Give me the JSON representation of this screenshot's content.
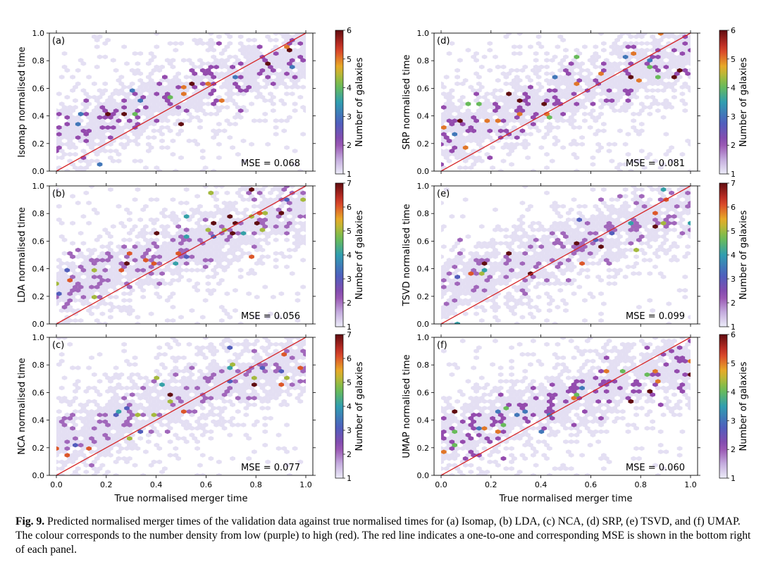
{
  "chart_data": [
    {
      "type": "heatmap",
      "subtype": "hexbin",
      "panel_label": "(a)",
      "ylabel": "Isomap normalised time",
      "xlabel": "",
      "mse": "MSE = 0.068",
      "xlim": [
        0,
        1
      ],
      "ylim": [
        0,
        1
      ],
      "x_ticks": [
        "0.0",
        "0.2",
        "0.4",
        "0.6",
        "0.8",
        "1.0"
      ],
      "y_ticks": [
        "0.0",
        "0.2",
        "0.4",
        "0.6",
        "0.8",
        "1.0"
      ],
      "show_x_ticklabels": false,
      "colorbar": {
        "label": "Number of galaxies",
        "ticks": [
          "1",
          "2",
          "3",
          "4",
          "5",
          "6"
        ],
        "min": 1,
        "max": 6
      },
      "reference_line": "one-to-one",
      "reference_color": "#d62728",
      "seed": 11
    },
    {
      "type": "heatmap",
      "subtype": "hexbin",
      "panel_label": "(d)",
      "ylabel": "SRP normalised time",
      "xlabel": "",
      "mse": "MSE = 0.081",
      "xlim": [
        0,
        1
      ],
      "ylim": [
        0,
        1
      ],
      "x_ticks": [
        "0.0",
        "0.2",
        "0.4",
        "0.6",
        "0.8",
        "1.0"
      ],
      "y_ticks": [
        "0.0",
        "0.2",
        "0.4",
        "0.6",
        "0.8",
        "1.0"
      ],
      "show_x_ticklabels": false,
      "colorbar": {
        "label": "Number of galaxies",
        "ticks": [
          "1",
          "2",
          "3",
          "4",
          "5",
          "6"
        ],
        "min": 1,
        "max": 6
      },
      "reference_line": "one-to-one",
      "reference_color": "#d62728",
      "seed": 23
    },
    {
      "type": "heatmap",
      "subtype": "hexbin",
      "panel_label": "(b)",
      "ylabel": "LDA normalised time",
      "xlabel": "",
      "mse": "MSE = 0.056",
      "xlim": [
        0,
        1
      ],
      "ylim": [
        0,
        1
      ],
      "x_ticks": [
        "0.0",
        "0.2",
        "0.4",
        "0.6",
        "0.8",
        "1.0"
      ],
      "y_ticks": [
        "0.0",
        "0.2",
        "0.4",
        "0.6",
        "0.8",
        "1.0"
      ],
      "show_x_ticklabels": false,
      "colorbar": {
        "label": "Number of galaxies",
        "ticks": [
          "1",
          "2",
          "3",
          "4",
          "5",
          "6",
          "7"
        ],
        "min": 1,
        "max": 7
      },
      "reference_line": "one-to-one",
      "reference_color": "#d62728",
      "seed": 37
    },
    {
      "type": "heatmap",
      "subtype": "hexbin",
      "panel_label": "(e)",
      "ylabel": "TSVD normalised time",
      "xlabel": "",
      "mse": "MSE = 0.099",
      "xlim": [
        0,
        1
      ],
      "ylim": [
        0,
        1
      ],
      "x_ticks": [
        "0.0",
        "0.2",
        "0.4",
        "0.6",
        "0.8",
        "1.0"
      ],
      "y_ticks": [
        "0.0",
        "0.2",
        "0.4",
        "0.6",
        "0.8",
        "1.0"
      ],
      "show_x_ticklabels": false,
      "colorbar": {
        "label": "Number of galaxies",
        "ticks": [
          "1",
          "2",
          "3",
          "4",
          "5",
          "6",
          "7"
        ],
        "min": 1,
        "max": 7
      },
      "reference_line": "one-to-one",
      "reference_color": "#d62728",
      "seed": 41
    },
    {
      "type": "heatmap",
      "subtype": "hexbin",
      "panel_label": "(c)",
      "ylabel": "NCA normalised time",
      "xlabel": "True normalised merger time",
      "mse": "MSE = 0.077",
      "xlim": [
        0,
        1
      ],
      "ylim": [
        0,
        1
      ],
      "x_ticks": [
        "0.0",
        "0.2",
        "0.4",
        "0.6",
        "0.8",
        "1.0"
      ],
      "y_ticks": [
        "0.0",
        "0.2",
        "0.4",
        "0.6",
        "0.8",
        "1.0"
      ],
      "show_x_ticklabels": true,
      "colorbar": {
        "label": "Number of galaxies",
        "ticks": [
          "1",
          "2",
          "3",
          "4",
          "5",
          "6",
          "7"
        ],
        "min": 1,
        "max": 7
      },
      "reference_line": "one-to-one",
      "reference_color": "#d62728",
      "seed": 53
    },
    {
      "type": "heatmap",
      "subtype": "hexbin",
      "panel_label": "(f)",
      "ylabel": "UMAP normalised time",
      "xlabel": "True normalised merger time",
      "mse": "MSE = 0.060",
      "xlim": [
        0,
        1
      ],
      "ylim": [
        0,
        1
      ],
      "x_ticks": [
        "0.0",
        "0.2",
        "0.4",
        "0.6",
        "0.8",
        "1.0"
      ],
      "y_ticks": [
        "0.0",
        "0.2",
        "0.4",
        "0.6",
        "0.8",
        "1.0"
      ],
      "show_x_ticklabels": true,
      "colorbar": {
        "label": "Number of galaxies",
        "ticks": [
          "1",
          "2",
          "3",
          "4",
          "5",
          "6"
        ],
        "min": 1,
        "max": 6
      },
      "reference_line": "one-to-one",
      "reference_color": "#d62728",
      "seed": 67
    }
  ],
  "caption": {
    "label": "Fig. 9.",
    "text": " Predicted normalised merger times of the validation data against true normalised times for (a) Isomap, (b) LDA, (c) NCA, (d) SRP, (e) TSVD, and (f) UMAP. The colour corresponds to the number density from low (purple) to high (red). The red line indicates a one-to-one and corresponding MSE is shown in the bottom right of each panel."
  }
}
